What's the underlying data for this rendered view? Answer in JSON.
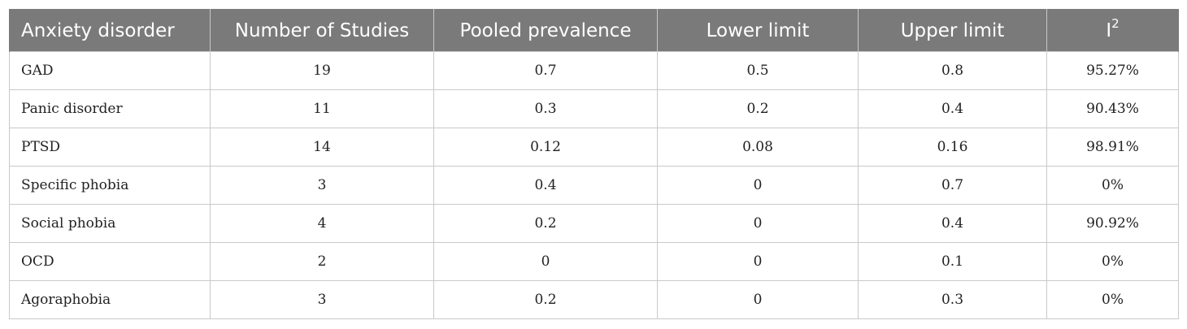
{
  "table": {
    "headers": {
      "disorder": "Anxiety disorder",
      "studies": "Number of Studies",
      "pooled": "Pooled prevalence",
      "lower": "Lower limit",
      "upper": "Upper limit",
      "i2_base": "I",
      "i2_sup": "2"
    },
    "rows": [
      {
        "disorder": "GAD",
        "studies": "19",
        "pooled": "0.7",
        "lower": "0.5",
        "upper": "0.8",
        "i2": "95.27%"
      },
      {
        "disorder": "Panic disorder",
        "studies": "11",
        "pooled": "0.3",
        "lower": "0.2",
        "upper": "0.4",
        "i2": "90.43%"
      },
      {
        "disorder": "PTSD",
        "studies": "14",
        "pooled": "0.12",
        "lower": "0.08",
        "upper": "0.16",
        "i2": "98.91%"
      },
      {
        "disorder": "Specific phobia",
        "studies": "3",
        "pooled": "0.4",
        "lower": "0",
        "upper": "0.7",
        "i2": "0%"
      },
      {
        "disorder": "Social phobia",
        "studies": "4",
        "pooled": "0.2",
        "lower": "0",
        "upper": "0.4",
        "i2": "90.92%"
      },
      {
        "disorder": "OCD",
        "studies": "2",
        "pooled": "0",
        "lower": "0",
        "upper": "0.1",
        "i2": "0%"
      },
      {
        "disorder": "Agoraphobia",
        "studies": "3",
        "pooled": "0.2",
        "lower": "0",
        "upper": "0.3",
        "i2": "0%"
      }
    ],
    "colors": {
      "header_background": "#7a7a7a",
      "header_text": "#ffffff",
      "grid_line": "#c9c9c9"
    }
  }
}
